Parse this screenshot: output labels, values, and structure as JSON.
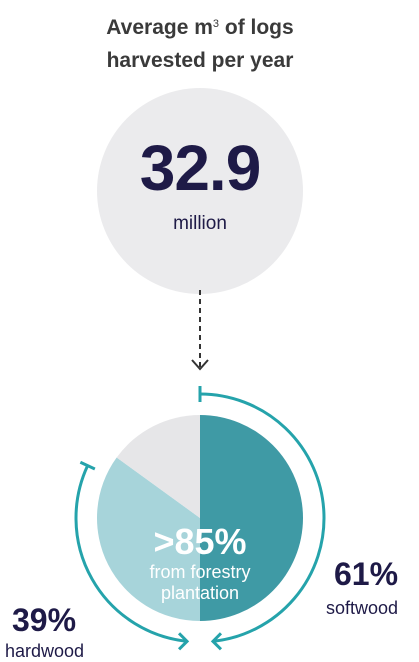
{
  "header": {
    "title_prefix": "Average m",
    "title_sup": "3",
    "title_suffix": " of logs",
    "title_line2": "harvested per year"
  },
  "stat": {
    "value": "32.9",
    "unit": "million"
  },
  "center": {
    "value": ">85%",
    "line1": "from forestry",
    "line2": "plantation"
  },
  "chart_data": {
    "type": "pie",
    "series": [
      {
        "name": "softwood",
        "value": 61,
        "label": "61%",
        "color": "#3f9aa5"
      },
      {
        "name": "hardwood",
        "value": 39,
        "label": "39%",
        "color": "#a7d4da"
      }
    ],
    "plantation_share_label": ">85%",
    "non_plantation_color": "#e6e6e8",
    "background_circle_color": "#ebebed",
    "accent_color": "#25a3ab",
    "text_color": "#1e1a47"
  }
}
